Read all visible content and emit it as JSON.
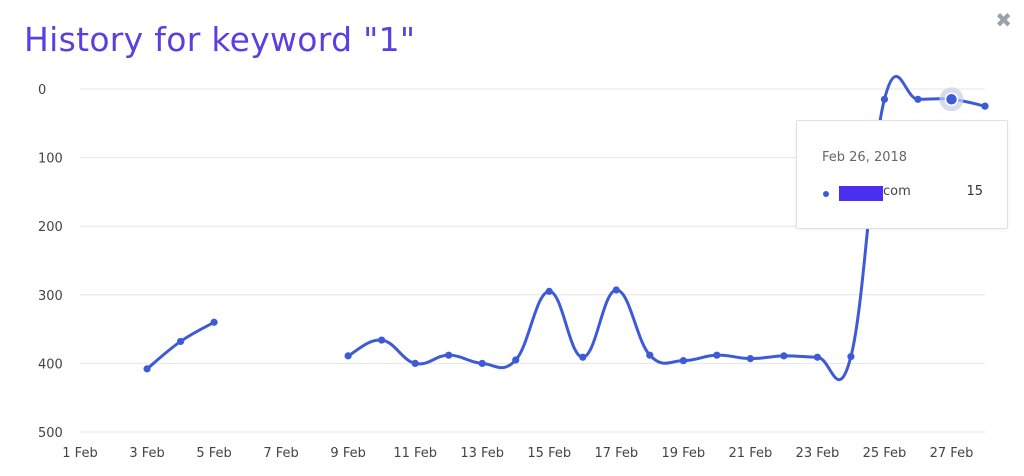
{
  "header": {
    "title": "History for keyword \"1\"",
    "close_glyph": "✖"
  },
  "tooltip": {
    "date": "Feb 26, 2018",
    "series_label": "com",
    "value": "15"
  },
  "colors": {
    "title": "#5b3fe0",
    "line": "#3d5bd6",
    "grid": "#e6e6e6",
    "redaction": "#4a2ff0"
  },
  "chart_data": {
    "type": "line",
    "y_axis": {
      "ticks": [
        0,
        100,
        200,
        300,
        400,
        500
      ],
      "range": [
        0,
        500
      ],
      "inverted": true
    },
    "x_axis": {
      "ticks": [
        "1 Feb",
        "3 Feb",
        "5 Feb",
        "7 Feb",
        "9 Feb",
        "11 Feb",
        "13 Feb",
        "15 Feb",
        "17 Feb",
        "19 Feb",
        "21 Feb",
        "23 Feb",
        "25 Feb",
        "27 Feb"
      ],
      "range_days": [
        1,
        28
      ]
    },
    "grid": true,
    "series": [
      {
        "points": [
          {
            "day": 3,
            "value": 408
          },
          {
            "day": 4,
            "value": 368
          },
          {
            "day": 5,
            "value": 340
          }
        ]
      },
      {
        "points": [
          {
            "day": 9,
            "value": 389
          },
          {
            "day": 10,
            "value": 366
          },
          {
            "day": 11,
            "value": 400
          },
          {
            "day": 12,
            "value": 388
          },
          {
            "day": 13,
            "value": 400
          },
          {
            "day": 14,
            "value": 395
          },
          {
            "day": 15,
            "value": 295
          },
          {
            "day": 16,
            "value": 391
          },
          {
            "day": 17,
            "value": 293
          },
          {
            "day": 18,
            "value": 388
          },
          {
            "day": 19,
            "value": 396
          },
          {
            "day": 20,
            "value": 388
          },
          {
            "day": 21,
            "value": 393
          },
          {
            "day": 22,
            "value": 389
          },
          {
            "day": 23,
            "value": 391
          },
          {
            "day": 24,
            "value": 390
          },
          {
            "day": 25,
            "value": 15
          },
          {
            "day": 26,
            "value": 15
          },
          {
            "day": 27,
            "value": 15
          },
          {
            "day": 28,
            "value": 25
          }
        ]
      }
    ],
    "highlighted_point": {
      "day": 27,
      "value": 15
    }
  }
}
